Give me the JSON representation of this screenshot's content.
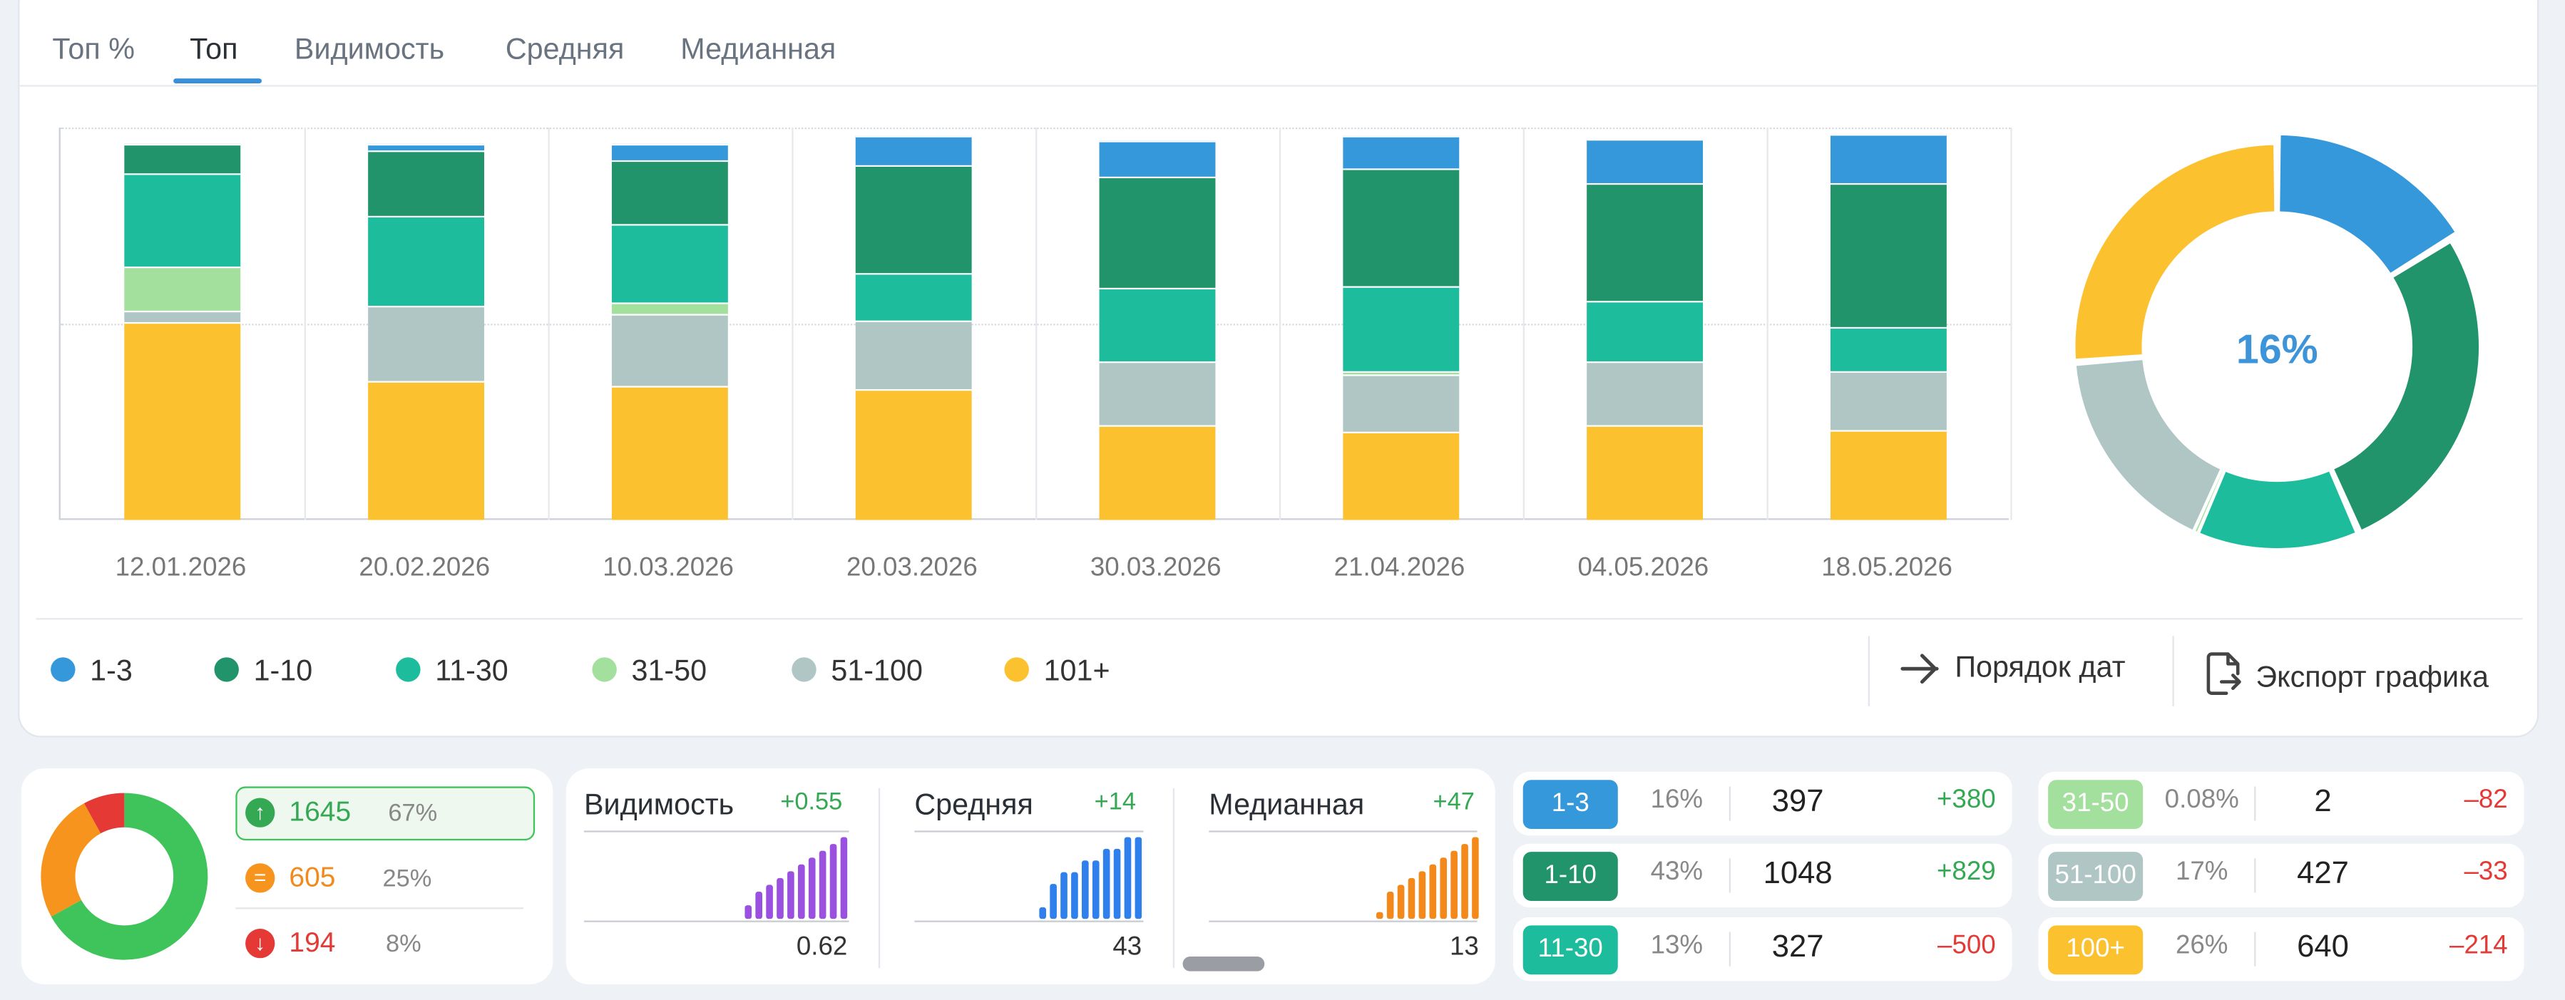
{
  "tabs": [
    {
      "label": "Топ %",
      "active": false
    },
    {
      "label": "Топ",
      "active": true
    },
    {
      "label": "Видимость",
      "active": false
    },
    {
      "label": "Средняя",
      "active": false
    },
    {
      "label": "Медианная",
      "active": false
    }
  ],
  "chart_data": [
    {
      "type": "bar",
      "stacked": true,
      "categories": [
        "12.01.2026",
        "20.02.2026",
        "10.03.2026",
        "20.03.2026",
        "30.03.2026",
        "21.04.2026",
        "04.05.2026",
        "18.05.2026"
      ],
      "series": [
        {
          "name": "1-3",
          "color": "#3498db",
          "values": [
            0,
            2,
            4.5,
            7.5,
            9,
            8.5,
            11,
            12.5
          ]
        },
        {
          "name": "1-10",
          "color": "#21946b",
          "values": [
            7.5,
            16.5,
            16,
            27.5,
            28.5,
            30,
            30,
            37
          ]
        },
        {
          "name": "11-30",
          "color": "#1dbc9c",
          "values": [
            24,
            23,
            20,
            12,
            18.5,
            21.5,
            15.5,
            11
          ]
        },
        {
          "name": "31-50",
          "color": "#a3df9d",
          "values": [
            11,
            0,
            3,
            0,
            0,
            1,
            0,
            0
          ]
        },
        {
          "name": "51-100",
          "color": "#b0c6c5",
          "values": [
            3,
            19,
            18.5,
            17.5,
            16.5,
            14.5,
            16.5,
            15
          ]
        },
        {
          "name": "101+",
          "color": "#fbc12f",
          "values": [
            50.5,
            35.5,
            34,
            33.5,
            24,
            22.5,
            24,
            23
          ]
        }
      ],
      "ylim": [
        0,
        100
      ],
      "grid": true,
      "legend": "bottom"
    },
    {
      "type": "pie",
      "donut": true,
      "center_label": "16%",
      "slices": [
        {
          "name": "1-3",
          "value": 16,
          "color": "#3498db"
        },
        {
          "name": "1-10",
          "value": 27,
          "color": "#21946b"
        },
        {
          "name": "11-30",
          "value": 13,
          "color": "#1dbc9c"
        },
        {
          "name": "31-50",
          "value": 0.08,
          "color": "#a3df9d"
        },
        {
          "name": "51-100",
          "value": 17,
          "color": "#b0c6c5"
        },
        {
          "name": "101+",
          "value": 26,
          "color": "#fbc12f"
        }
      ]
    },
    {
      "type": "pie",
      "donut": true,
      "slices": [
        {
          "name": "up",
          "value": 67,
          "color": "#3ec45a"
        },
        {
          "name": "same",
          "value": 25,
          "color": "#f7941d"
        },
        {
          "name": "down",
          "value": 8,
          "color": "#e53935"
        }
      ]
    },
    {
      "type": "bar",
      "name": "Видимость",
      "values": [
        2,
        4,
        5,
        6,
        7,
        8,
        9,
        10,
        11,
        12
      ],
      "color": "#9b51e0"
    },
    {
      "type": "bar",
      "name": "Средняя",
      "values": [
        1,
        3,
        4,
        4,
        5,
        5,
        6,
        6,
        7,
        7
      ],
      "color": "#2f80ed"
    },
    {
      "type": "bar",
      "name": "Медианная",
      "values": [
        1,
        4,
        5,
        6,
        7,
        8,
        9,
        10,
        11,
        12
      ],
      "color": "#f2891a"
    }
  ],
  "legend": [
    {
      "label": "1-3",
      "color": "#3498db"
    },
    {
      "label": "1-10",
      "color": "#21946b"
    },
    {
      "label": "11-30",
      "color": "#1dbc9c"
    },
    {
      "label": "31-50",
      "color": "#a3df9d"
    },
    {
      "label": "51-100",
      "color": "#b0c6c5"
    },
    {
      "label": "101+",
      "color": "#fbc12f"
    }
  ],
  "actions": {
    "order": "Порядок дат",
    "export": "Экспорт графика"
  },
  "summary": {
    "up": {
      "count": "1645",
      "pct": "67%",
      "icon": "arrow-up-icon"
    },
    "same": {
      "count": "605",
      "pct": "25%",
      "icon": "equals-icon"
    },
    "down": {
      "count": "194",
      "pct": "8%",
      "icon": "arrow-down-icon"
    }
  },
  "metrics": [
    {
      "name": "Видимость",
      "delta": "+0.55",
      "value": "0.62"
    },
    {
      "name": "Средняя",
      "delta": "+14",
      "value": "43"
    },
    {
      "name": "Медианная",
      "delta": "+47",
      "value": "13"
    }
  ],
  "ranges": [
    {
      "label": "1-3",
      "color": "#3498db",
      "pct": "16%",
      "count": "397",
      "delta": "+380",
      "up": true
    },
    {
      "label": "1-10",
      "color": "#21946b",
      "pct": "43%",
      "count": "1048",
      "delta": "+829",
      "up": true
    },
    {
      "label": "11-30",
      "color": "#1dbc9c",
      "pct": "13%",
      "count": "327",
      "delta": "–500",
      "up": false
    },
    {
      "label": "31-50",
      "color": "#a3df9d",
      "pct": "0.08%",
      "count": "2",
      "delta": "–82",
      "up": false
    },
    {
      "label": "51-100",
      "color": "#b0c6c5",
      "pct": "17%",
      "count": "427",
      "delta": "–33",
      "up": false
    },
    {
      "label": "100+",
      "color": "#fbc12f",
      "pct": "26%",
      "count": "640",
      "delta": "–214",
      "up": false
    }
  ],
  "colors": {
    "accent": "#3a8fd9",
    "positive": "#34a853",
    "negative": "#e53935"
  }
}
